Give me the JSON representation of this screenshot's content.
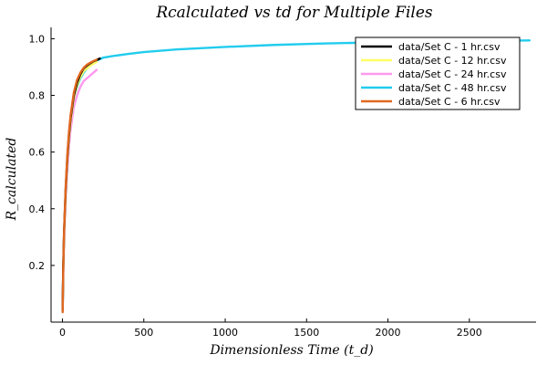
{
  "chart_data": {
    "type": "line",
    "title": "R_calculated vs t_d for Multiple Files",
    "title_display": "Rcalculated vs td for Multiple Files",
    "xlabel": "Dimensionless Time (t_d)",
    "ylabel": "R_calculated",
    "xlim": [
      -70,
      2910
    ],
    "ylim": [
      0.0,
      1.04
    ],
    "xticks": [
      0,
      500,
      1000,
      1500,
      2000,
      2500
    ],
    "xtick_labels": [
      "0",
      "500",
      "1000",
      "1500",
      "2000",
      "2500"
    ],
    "yticks": [
      0.2,
      0.4,
      0.6,
      0.8,
      1.0
    ],
    "ytick_labels": [
      "0.2",
      "0.4",
      "0.6",
      "0.8",
      "1.0"
    ],
    "grid": false,
    "legend_position": "top-right",
    "series": [
      {
        "name": "data/Set C - 1 hr.csv",
        "color": "#000000",
        "x": [
          1,
          5,
          10,
          20,
          30,
          40,
          50,
          70,
          90,
          110,
          130,
          150,
          170,
          190,
          210,
          230
        ],
        "y": [
          0.04,
          0.2,
          0.32,
          0.47,
          0.58,
          0.66,
          0.72,
          0.8,
          0.845,
          0.875,
          0.895,
          0.905,
          0.913,
          0.92,
          0.925,
          0.93
        ]
      },
      {
        "name": "data/Set C - 12 hr.csv",
        "color": "#ffff66",
        "x": [
          1,
          5,
          10,
          20,
          30,
          40,
          50,
          70,
          90,
          110,
          130,
          150,
          170,
          190,
          210
        ],
        "y": [
          0.04,
          0.19,
          0.31,
          0.46,
          0.57,
          0.65,
          0.71,
          0.79,
          0.835,
          0.865,
          0.885,
          0.895,
          0.905,
          0.912,
          0.918
        ]
      },
      {
        "name": "data/Set C - 24 hr.csv",
        "color": "#ff99ee",
        "x": [
          1,
          5,
          10,
          20,
          30,
          40,
          50,
          70,
          90,
          110,
          130,
          150,
          170,
          190,
          210
        ],
        "y": [
          0.04,
          0.17,
          0.29,
          0.44,
          0.54,
          0.62,
          0.68,
          0.76,
          0.8,
          0.83,
          0.85,
          0.86,
          0.87,
          0.88,
          0.89
        ]
      },
      {
        "name": "data/Set C - 48 hr.csv",
        "color": "#22ccee",
        "x": [
          1,
          5,
          10,
          20,
          30,
          40,
          50,
          70,
          90,
          110,
          130,
          150,
          200,
          250,
          300,
          400,
          500,
          700,
          1000,
          1300,
          1600,
          2000,
          2400,
          2870
        ],
        "y": [
          0.04,
          0.19,
          0.31,
          0.46,
          0.57,
          0.65,
          0.71,
          0.79,
          0.83,
          0.86,
          0.88,
          0.895,
          0.92,
          0.933,
          0.938,
          0.946,
          0.953,
          0.962,
          0.971,
          0.978,
          0.983,
          0.988,
          0.991,
          0.994
        ]
      },
      {
        "name": "data/Set C - 6 hr.csv",
        "color": "#e06820",
        "x": [
          1,
          5,
          10,
          20,
          30,
          40,
          50,
          70,
          90,
          110,
          130,
          150,
          170,
          190,
          210
        ],
        "y": [
          0.035,
          0.19,
          0.32,
          0.48,
          0.59,
          0.67,
          0.73,
          0.81,
          0.855,
          0.88,
          0.897,
          0.908,
          0.915,
          0.921,
          0.926
        ]
      }
    ]
  }
}
